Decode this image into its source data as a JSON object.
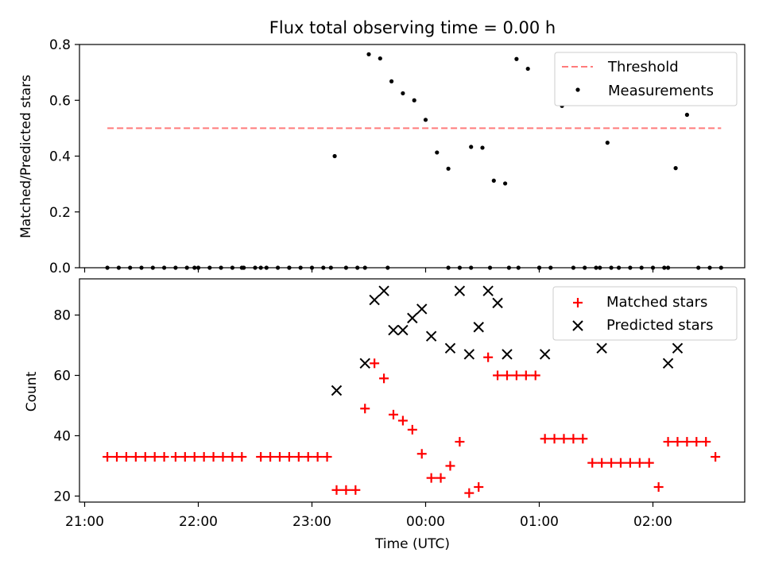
{
  "title": "Flux total observing time = 0.00 h",
  "chart_data": [
    {
      "type": "scatter",
      "panel": "top",
      "ylabel": "Matched/Predicted stars",
      "ylim": [
        0,
        0.8
      ],
      "yticks": [
        0.0,
        0.2,
        0.4,
        0.6,
        0.8
      ],
      "ytick_labels": [
        "0.0",
        "0.2",
        "0.4",
        "0.6",
        "0.8"
      ],
      "legend_position": "top-right",
      "threshold": {
        "name": "Threshold",
        "value": 0.5,
        "x_start": "21:12",
        "x_end": "02:36",
        "color": "#ff7b7b",
        "style": "dashed"
      },
      "series": [
        {
          "name": "Measurements",
          "color": "#000000",
          "marker": "dot",
          "x": [
            "21:12",
            "21:18",
            "21:24",
            "21:30",
            "21:36",
            "21:42",
            "21:48",
            "21:54",
            "22:00",
            "22:06",
            "22:12",
            "22:18",
            "22:24",
            "22:30",
            "22:36",
            "22:42",
            "22:48",
            "22:54",
            "23:00",
            "23:06",
            "23:12",
            "23:18",
            "23:24",
            "23:30",
            "23:36",
            "23:42",
            "23:48",
            "23:54",
            "00:00",
            "00:06",
            "00:12",
            "00:18",
            "00:24",
            "00:30",
            "00:36",
            "00:42",
            "00:48",
            "00:54",
            "01:00",
            "01:06",
            "01:12",
            "01:18",
            "01:24",
            "01:30",
            "01:36",
            "01:42",
            "01:48",
            "01:54",
            "02:00",
            "02:06",
            "02:12",
            "02:18",
            "02:24",
            "02:30",
            "02:36",
            "21:58",
            "22:23",
            "22:33",
            "22:48",
            "23:10",
            "23:28",
            "23:40",
            "00:12",
            "00:24",
            "00:34",
            "00:44",
            "00:49",
            "01:00",
            "01:32",
            "01:38",
            "02:08"
          ],
          "y": [
            0,
            0,
            0,
            0,
            0,
            0,
            0,
            0,
            0,
            0,
            0,
            0,
            0,
            0,
            0,
            0,
            0,
            0,
            0,
            0,
            0.4,
            0,
            0,
            0.765,
            0.75,
            0.668,
            0.625,
            0.6,
            0.53,
            0.413,
            0.355,
            0,
            0.433,
            0.43,
            0.312,
            0.302,
            0.748,
            0.713,
            0,
            0,
            0.58,
            0,
            0,
            0,
            0.448,
            0,
            0,
            0,
            0,
            0,
            0.357,
            0.548,
            0,
            0,
            0,
            0,
            0,
            0,
            0,
            0,
            0,
            0,
            0,
            0,
            0,
            0,
            0,
            0,
            0,
            0,
            0
          ]
        }
      ]
    },
    {
      "type": "scatter",
      "panel": "bottom",
      "xlabel": "Time (UTC)",
      "ylabel": "Count",
      "ylim": [
        18,
        92
      ],
      "yticks": [
        20,
        40,
        60,
        80
      ],
      "ytick_labels": [
        "20",
        "40",
        "60",
        "80"
      ],
      "xticks": [
        "21:00",
        "22:00",
        "23:00",
        "00:00",
        "01:00",
        "02:00"
      ],
      "legend_position": "top-right",
      "series": [
        {
          "name": "Matched stars",
          "color": "#ff0000",
          "marker": "plus",
          "x": [
            "21:12",
            "21:17",
            "21:22",
            "21:27",
            "21:32",
            "21:37",
            "21:42",
            "21:48",
            "21:53",
            "21:58",
            "22:03",
            "22:08",
            "22:13",
            "22:18",
            "22:23",
            "22:33",
            "22:38",
            "22:43",
            "22:48",
            "22:53",
            "22:58",
            "23:03",
            "23:08",
            "23:13",
            "23:18",
            "23:23",
            "23:28",
            "23:33",
            "23:38",
            "23:43",
            "23:48",
            "23:53",
            "23:58",
            "00:03",
            "00:08",
            "00:13",
            "00:18",
            "00:23",
            "00:28",
            "00:33",
            "00:38",
            "00:43",
            "00:48",
            "00:53",
            "00:58",
            "01:03",
            "01:08",
            "01:13",
            "01:18",
            "01:23",
            "01:28",
            "01:33",
            "01:38",
            "01:43",
            "01:48",
            "01:53",
            "01:58",
            "02:03",
            "02:08",
            "02:13",
            "02:18",
            "02:23",
            "02:28",
            "02:33"
          ],
          "y": [
            33,
            33,
            33,
            33,
            33,
            33,
            33,
            33,
            33,
            33,
            33,
            33,
            33,
            33,
            33,
            33,
            33,
            33,
            33,
            33,
            33,
            33,
            33,
            22,
            22,
            22,
            49,
            64,
            59,
            47,
            45,
            42,
            34,
            26,
            26,
            30,
            38,
            21,
            23,
            66,
            60,
            60,
            60,
            60,
            60,
            39,
            39,
            39,
            39,
            39,
            31,
            31,
            31,
            31,
            31,
            31,
            31,
            23,
            38,
            38,
            38,
            38,
            38,
            33
          ]
        },
        {
          "name": "Predicted stars",
          "color": "#000000",
          "marker": "x",
          "x": [
            "23:13",
            "23:28",
            "23:33",
            "23:38",
            "23:43",
            "23:48",
            "23:53",
            "23:58",
            "00:03",
            "00:13",
            "00:18",
            "00:23",
            "00:28",
            "00:33",
            "00:38",
            "00:43",
            "01:03",
            "01:33",
            "02:08",
            "02:13"
          ],
          "y": [
            55,
            64,
            85,
            88,
            75,
            75,
            79,
            82,
            73,
            69,
            88,
            67,
            76,
            88,
            84,
            67,
            67,
            69,
            64,
            69
          ]
        }
      ]
    }
  ]
}
